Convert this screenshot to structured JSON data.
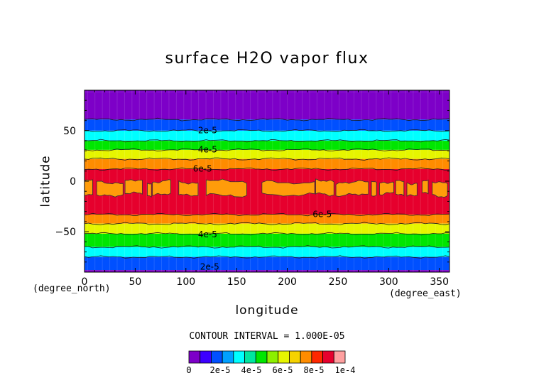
{
  "chart_data": {
    "type": "heatmap",
    "title": "surface H2O vapor flux",
    "xlabel": "longitude",
    "ylabel": "latitude",
    "x_unit": "(degree_east)",
    "y_unit": "(degree_north)",
    "xlim": [
      0,
      360
    ],
    "ylim": [
      -90,
      90
    ],
    "x_ticks": [
      "0",
      "50",
      "100",
      "150",
      "200",
      "250",
      "300",
      "350"
    ],
    "y_ticks": [
      "50",
      "0",
      "-50"
    ],
    "contour_interval": "CONTOUR INTERVAL = 1.000E-05",
    "contour_labels": [
      "2e-5",
      "4e-5",
      "6e-5",
      "6e-5",
      "4e-5",
      "2e-5"
    ],
    "bands": [
      {
        "lat_min": 61,
        "lat_max": 88,
        "level_min": 0,
        "level_max": 1e-05
      },
      {
        "lat_min": 50,
        "lat_max": 61,
        "level_min": 1e-05,
        "level_max": 2e-05
      },
      {
        "lat_min": 40,
        "lat_max": 50,
        "level_min": 2e-05,
        "level_max": 3e-05
      },
      {
        "lat_min": 31,
        "lat_max": 40,
        "level_min": 3e-05,
        "level_max": 4e-05
      },
      {
        "lat_min": 22,
        "lat_max": 31,
        "level_min": 4e-05,
        "level_max": 5e-05
      },
      {
        "lat_min": 12,
        "lat_max": 22,
        "level_min": 5e-05,
        "level_max": 6e-05
      },
      {
        "lat_min": -33,
        "lat_max": 12,
        "level_min": 6e-05,
        "level_max": 7e-05
      },
      {
        "lat_min": -42,
        "lat_max": -33,
        "level_min": 5e-05,
        "level_max": 6e-05
      },
      {
        "lat_min": -52,
        "lat_max": -42,
        "level_min": 4e-05,
        "level_max": 5e-05
      },
      {
        "lat_min": -65,
        "lat_max": -52,
        "level_min": 3e-05,
        "level_max": 4e-05
      },
      {
        "lat_min": -75,
        "lat_max": -65,
        "level_min": 2e-05,
        "level_max": 3e-05
      },
      {
        "lat_min": -88,
        "lat_max": -75,
        "level_min": 1e-05,
        "level_max": 2e-05
      }
    ],
    "max_region": {
      "lat_min": -14,
      "lat_max": 0,
      "level_min": 7e-05,
      "level_max": 8e-05
    },
    "colorbar": {
      "colors": [
        "#7d00c8",
        "#3c00ff",
        "#0050ff",
        "#00a0ff",
        "#00ffff",
        "#00e6a0",
        "#00e600",
        "#8cf000",
        "#e6f500",
        "#f5d200",
        "#ff8c00",
        "#ff2800",
        "#e6002d",
        "#ffa0a0"
      ],
      "labels": [
        "0",
        "2e-5",
        "4e-5",
        "6e-5",
        "8e-5",
        "1e-4"
      ]
    }
  }
}
